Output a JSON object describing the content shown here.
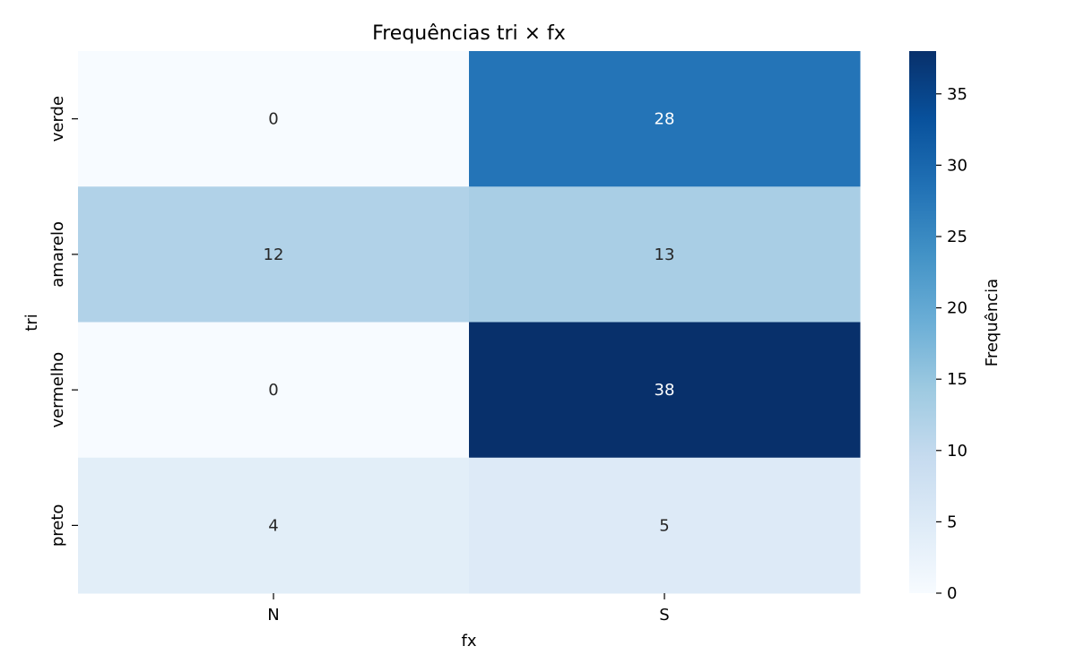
{
  "chart_data": {
    "type": "heatmap",
    "title": "Frequências tri × fx",
    "xlabel": "fx",
    "ylabel": "tri",
    "x_categories": [
      "N",
      "S"
    ],
    "y_categories": [
      "verde",
      "amarelo",
      "vermelho",
      "preto"
    ],
    "values": [
      [
        0,
        28
      ],
      [
        12,
        13
      ],
      [
        0,
        38
      ],
      [
        4,
        5
      ]
    ],
    "colorbar": {
      "label": "Frequência",
      "range": [
        0,
        38
      ],
      "ticks": [
        0,
        5,
        10,
        15,
        20,
        25,
        30,
        35
      ],
      "colormap": "Blues"
    },
    "annotations": true,
    "grid": false,
    "legend": "colorbar-right"
  }
}
